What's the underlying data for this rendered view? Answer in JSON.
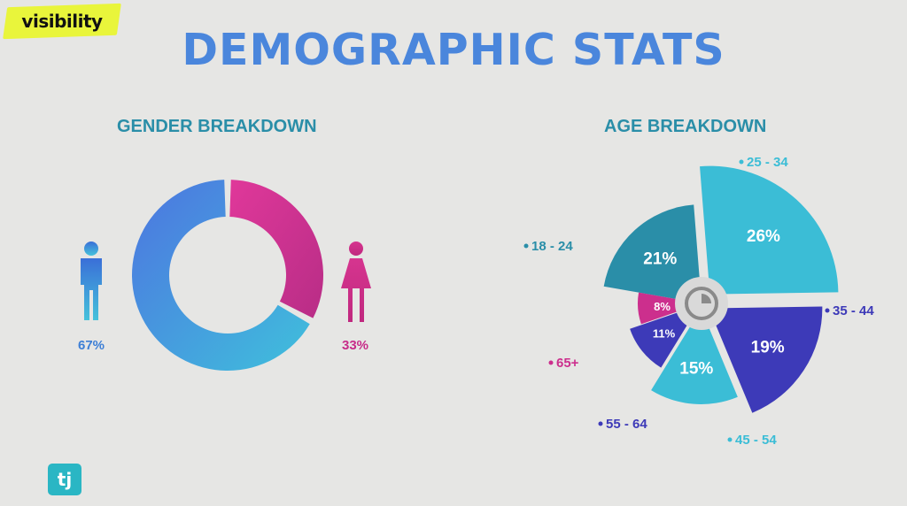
{
  "badge": {
    "text": "visibility"
  },
  "title": "DEMOGRAPHIC STATS",
  "logo": {
    "text": "tj"
  },
  "colors": {
    "male": "#4a8fe0",
    "female": "#cc2f8d",
    "teal": "#2a8ea8",
    "purple": "#4a3fb3",
    "pink": "#cc2f8d",
    "cyan": "#3bbdd6"
  },
  "chart_data": [
    {
      "type": "pie",
      "title": "GENDER BREAKDOWN",
      "categories": [
        "male",
        "female"
      ],
      "values": [
        67,
        33
      ],
      "labels": [
        "67%",
        "33%"
      ],
      "icons": [
        "male-person-icon",
        "female-person-icon"
      ]
    },
    {
      "type": "pie",
      "title": "AGE BREAKDOWN",
      "categories": [
        "18 - 24",
        "25 - 34",
        "35 - 44",
        "45 - 54",
        "55 - 64",
        "65+"
      ],
      "values": [
        21,
        26,
        19,
        15,
        11,
        8
      ],
      "labels": [
        "21%",
        "26%",
        "19%",
        "15%",
        "11%",
        "8%"
      ],
      "colors": [
        "#2a8ea8",
        "#3bbdd6",
        "#3d3ab8",
        "#3bbdd6",
        "#3d3ab8",
        "#cc2f8d"
      ],
      "legend_colors": [
        "#2a8ea8",
        "#3bbdd6",
        "#3d3ab8",
        "#3bbdd6",
        "#3d3ab8",
        "#cc2f8d"
      ]
    }
  ]
}
